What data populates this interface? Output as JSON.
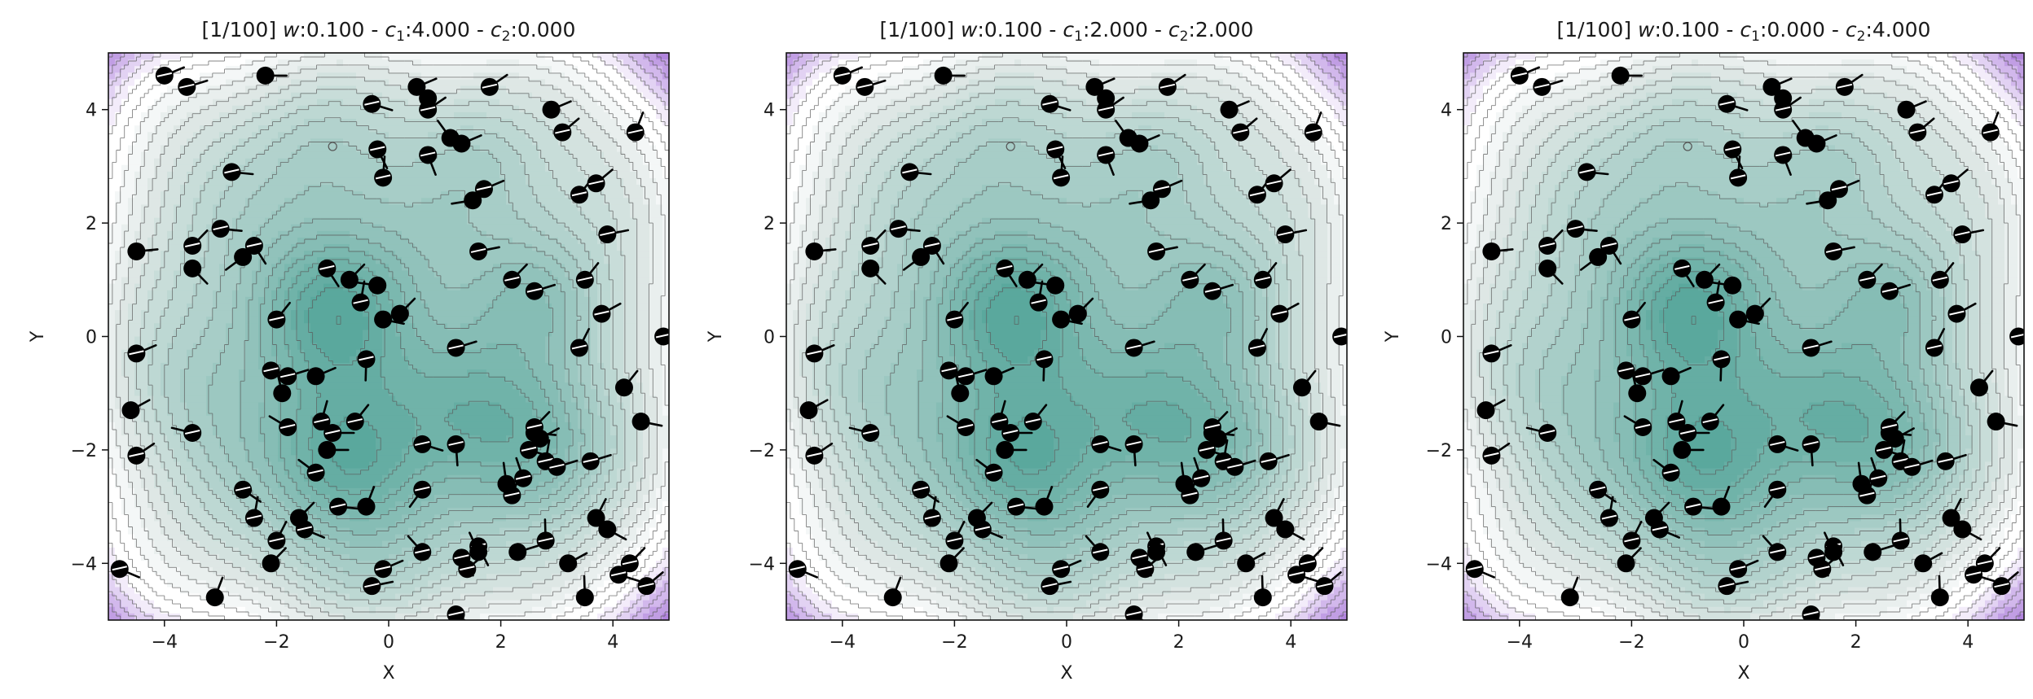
{
  "chart_data": [
    {
      "type": "contour-scatter",
      "title_prefix": "[1/100] ",
      "title_w": "w",
      "title_w_value": ":0.100 - ",
      "title_c1": "c",
      "title_c1_sub": "1",
      "title_c1_value": ":4.000 - ",
      "title_c2": "c",
      "title_c2_sub": "2",
      "title_c2_value": ":0.000",
      "xlabel": "X",
      "ylabel": "Y",
      "xlim": [
        -5,
        5
      ],
      "ylim": [
        -5,
        5
      ],
      "xticks": [
        "−4",
        "−2",
        "0",
        "2",
        "4"
      ],
      "yticks": [
        "4",
        "2",
        "0",
        "−2",
        "−4"
      ]
    },
    {
      "type": "contour-scatter",
      "title_prefix": "[1/100] ",
      "title_w": "w",
      "title_w_value": ":0.100 - ",
      "title_c1": "c",
      "title_c1_sub": "1",
      "title_c1_value": ":2.000 - ",
      "title_c2": "c",
      "title_c2_sub": "2",
      "title_c2_value": ":2.000",
      "xlabel": "X",
      "ylabel": "Y",
      "xlim": [
        -5,
        5
      ],
      "ylim": [
        -5,
        5
      ],
      "xticks": [
        "−4",
        "−2",
        "0",
        "2",
        "4"
      ],
      "yticks": [
        "4",
        "2",
        "0",
        "−2",
        "−4"
      ]
    },
    {
      "type": "contour-scatter",
      "title_prefix": "[1/100] ",
      "title_w": "w",
      "title_w_value": ":0.100 - ",
      "title_c1": "c",
      "title_c1_sub": "1",
      "title_c1_value": ":0.000 - ",
      "title_c2": "c",
      "title_c2_sub": "2",
      "title_c2_value": ":4.000",
      "xlabel": "X",
      "ylabel": "Y",
      "xlim": [
        -5,
        5
      ],
      "ylim": [
        -5,
        5
      ],
      "xticks": [
        "−4",
        "−2",
        "0",
        "2",
        "4"
      ],
      "yticks": [
        "4",
        "2",
        "0",
        "−2",
        "−4"
      ]
    }
  ],
  "particles": [
    [
      -4.8,
      -4.1,
      0.4
    ],
    [
      -4.6,
      -1.3,
      -0.5
    ],
    [
      -4.5,
      -2.1,
      -0.6
    ],
    [
      -4.5,
      -0.3,
      -0.4
    ],
    [
      -4.5,
      1.5,
      -0.1
    ],
    [
      -4.0,
      4.6,
      -0.4
    ],
    [
      -3.6,
      4.4,
      -0.3
    ],
    [
      -3.1,
      -4.6,
      -1.2
    ],
    [
      -3.5,
      1.6,
      -0.8
    ],
    [
      -3.5,
      -1.7,
      -2.9
    ],
    [
      -3.5,
      1.2,
      0.8
    ],
    [
      -3.0,
      1.9,
      0.1
    ],
    [
      -2.8,
      2.9,
      0.1
    ],
    [
      -2.6,
      1.4,
      2.5
    ],
    [
      -2.6,
      -2.7,
      0.6
    ],
    [
      -2.4,
      1.6,
      1.0
    ],
    [
      -2.2,
      4.6,
      0.0
    ],
    [
      -2.4,
      -3.2,
      -1.4
    ],
    [
      -2.1,
      -0.6,
      0.2
    ],
    [
      -2.1,
      -4.0,
      -0.8
    ],
    [
      -2.0,
      -3.6,
      -1.1
    ],
    [
      -2.0,
      0.3,
      -0.9
    ],
    [
      -1.9,
      -1.0,
      -1.8
    ],
    [
      -1.8,
      -0.7,
      -0.3
    ],
    [
      -1.8,
      -1.6,
      -2.6
    ],
    [
      -1.6,
      -3.2,
      -0.8
    ],
    [
      -1.5,
      -3.4,
      0.4
    ],
    [
      -1.3,
      -2.4,
      -2.5
    ],
    [
      -1.3,
      -0.7,
      -0.4
    ],
    [
      -1.2,
      -1.5,
      -1.3
    ],
    [
      -1.1,
      1.2,
      1.0
    ],
    [
      -1.1,
      -2.0,
      0.0
    ],
    [
      -1.0,
      -1.7,
      0.0
    ],
    [
      -0.9,
      -3.0,
      0.1
    ],
    [
      -0.7,
      1.0,
      -0.8
    ],
    [
      -0.6,
      -1.5,
      -0.9
    ],
    [
      -0.5,
      0.6,
      -1.4
    ],
    [
      -0.4,
      -3.0,
      -1.2
    ],
    [
      -0.4,
      -0.4,
      1.6
    ],
    [
      -0.3,
      -4.4,
      -0.2
    ],
    [
      -0.2,
      0.9,
      -3.0
    ],
    [
      -0.2,
      3.3,
      1.1
    ],
    [
      -0.1,
      2.8,
      -1.5
    ],
    [
      -0.1,
      0.3,
      0.2
    ],
    [
      -0.1,
      -4.1,
      -0.4
    ],
    [
      -0.3,
      4.1,
      0.3
    ],
    [
      0.2,
      0.4,
      -0.8
    ],
    [
      0.6,
      -3.8,
      -2.3
    ],
    [
      0.6,
      -1.9,
      0.3
    ],
    [
      0.5,
      4.4,
      -0.4
    ],
    [
      0.6,
      -2.7,
      2.2
    ],
    [
      0.7,
      3.2,
      1.2
    ],
    [
      0.7,
      4.2,
      -2.5
    ],
    [
      0.7,
      4.0,
      -0.6
    ],
    [
      1.2,
      -0.2,
      -0.3
    ],
    [
      1.1,
      3.5,
      -2.2
    ],
    [
      1.2,
      -4.9,
      0.6
    ],
    [
      1.2,
      -1.9,
      1.5
    ],
    [
      1.3,
      3.4,
      -0.4
    ],
    [
      1.3,
      -3.9,
      1.0
    ],
    [
      1.4,
      -4.1,
      -0.7
    ],
    [
      1.5,
      2.4,
      -3.3
    ],
    [
      1.6,
      -3.7,
      1.1
    ],
    [
      1.6,
      1.5,
      -0.2
    ],
    [
      1.6,
      -3.8,
      -2.0
    ],
    [
      1.7,
      2.6,
      -0.4
    ],
    [
      1.8,
      4.4,
      -0.6
    ],
    [
      2.1,
      -2.6,
      -1.7
    ],
    [
      2.2,
      1.0,
      -0.8
    ],
    [
      2.2,
      -2.8,
      -1.2
    ],
    [
      2.3,
      -3.8,
      -0.3
    ],
    [
      2.4,
      -2.5,
      -1.9
    ],
    [
      2.5,
      -2.0,
      0.3
    ],
    [
      2.6,
      -1.7,
      0.1
    ],
    [
      2.6,
      0.8,
      -0.3
    ],
    [
      2.6,
      -1.6,
      -0.8
    ],
    [
      2.7,
      -1.8,
      -0.5
    ],
    [
      2.8,
      -2.2,
      -1.4
    ],
    [
      2.8,
      -3.6,
      -1.6
    ],
    [
      2.9,
      4.0,
      -0.4
    ],
    [
      3.0,
      -2.3,
      -0.3
    ],
    [
      3.1,
      3.6,
      -0.7
    ],
    [
      3.2,
      -4.0,
      -0.5
    ],
    [
      3.4,
      -0.2,
      -1.1
    ],
    [
      3.4,
      2.5,
      -0.9
    ],
    [
      3.5,
      -4.6,
      -1.6
    ],
    [
      3.5,
      1.0,
      -0.9
    ],
    [
      3.6,
      -2.2,
      -0.3
    ],
    [
      3.7,
      -3.2,
      -1.1
    ],
    [
      3.7,
      2.7,
      -0.7
    ],
    [
      3.8,
      0.4,
      -0.5
    ],
    [
      3.9,
      -3.4,
      0.5
    ],
    [
      3.9,
      1.8,
      -0.2
    ],
    [
      4.1,
      -4.2,
      0.3
    ],
    [
      4.2,
      -0.9,
      -0.9
    ],
    [
      4.3,
      -4.0,
      -0.8
    ],
    [
      4.4,
      3.6,
      -1.2
    ],
    [
      4.5,
      -1.5,
      0.2
    ],
    [
      4.6,
      -4.4,
      -0.7
    ],
    [
      4.9,
      0.0,
      0.5
    ]
  ],
  "hatched_count": 30,
  "particle_colors": {
    "body": "#000000",
    "stripe": "#ffffff",
    "marker": "#000000"
  },
  "colormap": {
    "low": "#5aa89d",
    "mid": "#dfe8e6",
    "white": "#ffffff",
    "high": "#a06ad6"
  }
}
